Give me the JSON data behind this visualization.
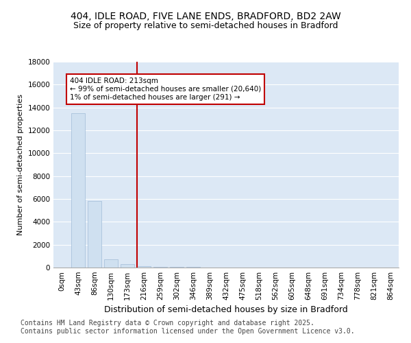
{
  "title": "404, IDLE ROAD, FIVE LANE ENDS, BRADFORD, BD2 2AW",
  "subtitle": "Size of property relative to semi-detached houses in Bradford",
  "xlabel": "Distribution of semi-detached houses by size in Bradford",
  "ylabel": "Number of semi-detached properties",
  "bar_color": "#cfe0f0",
  "bar_edge_color": "#a0bcd8",
  "vline_color": "#c00000",
  "annotation_text": "404 IDLE ROAD: 213sqm\n← 99% of semi-detached houses are smaller (20,640)\n1% of semi-detached houses are larger (291) →",
  "bins": [
    "0sqm",
    "43sqm",
    "86sqm",
    "130sqm",
    "173sqm",
    "216sqm",
    "259sqm",
    "302sqm",
    "346sqm",
    "389sqm",
    "432sqm",
    "475sqm",
    "518sqm",
    "562sqm",
    "605sqm",
    "648sqm",
    "691sqm",
    "734sqm",
    "778sqm",
    "821sqm",
    "864sqm"
  ],
  "values": [
    0,
    13500,
    5800,
    700,
    300,
    100,
    80,
    60,
    40,
    30,
    20,
    15,
    10,
    8,
    6,
    5,
    4,
    3,
    2,
    2,
    1
  ],
  "vline_bin_index": 5,
  "ylim": [
    0,
    18000
  ],
  "yticks": [
    0,
    2000,
    4000,
    6000,
    8000,
    10000,
    12000,
    14000,
    16000,
    18000
  ],
  "background_color": "#dce8f5",
  "grid_color": "#ffffff",
  "footer": "Contains HM Land Registry data © Crown copyright and database right 2025.\nContains public sector information licensed under the Open Government Licence v3.0.",
  "title_fontsize": 10,
  "subtitle_fontsize": 9,
  "xlabel_fontsize": 9,
  "ylabel_fontsize": 8,
  "tick_fontsize": 7.5,
  "footer_fontsize": 7,
  "annot_fontsize": 7.5
}
